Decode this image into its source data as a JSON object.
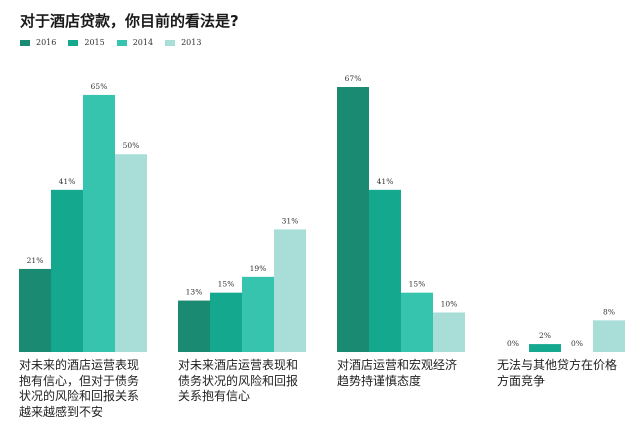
{
  "title": "对于酒店贷款，你目前的看法是?",
  "legend": [
    {
      "label": "2016",
      "color": "#1b8a73"
    },
    {
      "label": "2015",
      "color": "#14a98e"
    },
    {
      "label": "2014",
      "color": "#37c4ae"
    },
    {
      "label": "2013",
      "color": "#a8ded7"
    }
  ],
  "chart_data": {
    "type": "bar",
    "title": "对于酒店贷款，你目前的看法是?",
    "categories": [
      "对未来的酒店运营表现抱有信心，但对于债务状况的风险和回报关系越来越感到不安",
      "对未来酒店运营表现和债务状况的风险和回报关系抱有信心",
      "对酒店运营和宏观经济趋势持谨慎态度",
      "无法与其他贷方在价格方面竞争"
    ],
    "category_lines": [
      [
        "对未来的酒店运营表现",
        "抱有信心，但对于债务",
        "状况的风险和回报关系",
        "越来越感到不安"
      ],
      [
        "对未来酒店运营表现和",
        "债务状况的风险和回报",
        "关系抱有信心"
      ],
      [
        "对酒店运营和宏观经济",
        "趋势持谨慎态度"
      ],
      [
        "无法与其他贷方在价格",
        "方面竞争"
      ]
    ],
    "series": [
      {
        "name": "2016",
        "values": [
          21,
          13,
          67,
          0
        ]
      },
      {
        "name": "2015",
        "values": [
          41,
          15,
          41,
          2
        ]
      },
      {
        "name": "2014",
        "values": [
          65,
          19,
          15,
          0
        ]
      },
      {
        "name": "2013",
        "values": [
          50,
          31,
          10,
          8
        ]
      }
    ],
    "value_labels": [
      [
        "21%",
        "13%",
        "67%",
        "0%"
      ],
      [
        "41%",
        "15%",
        "41%",
        "2%"
      ],
      [
        "65%",
        "19%",
        "15%",
        "0%"
      ],
      [
        "50%",
        "31%",
        "10%",
        "8%"
      ]
    ],
    "ylim": [
      0,
      70
    ],
    "grid": false,
    "legend_position": "top-left"
  }
}
